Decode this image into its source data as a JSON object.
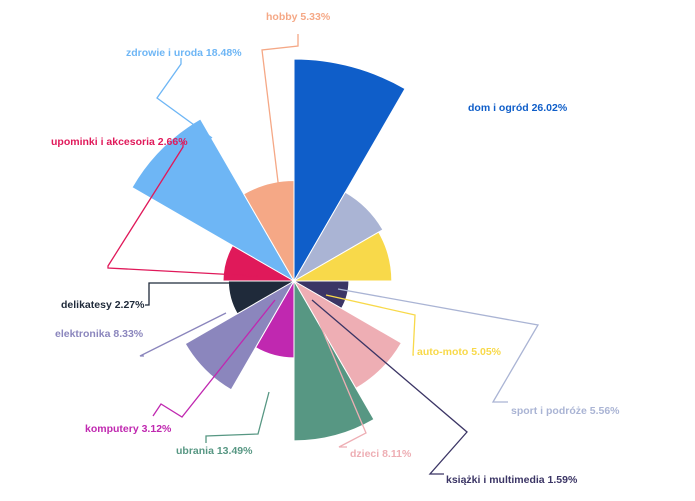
{
  "chart_data": {
    "type": "pie",
    "variant": "polar-area",
    "slices": [
      {
        "label": "dom i ogród",
        "value": 26.02,
        "display": "dom i ogród 26.02%",
        "color": "#0f5ec9"
      },
      {
        "label": "sport i podróże",
        "value": 5.56,
        "display": "sport i podróże 5.56%",
        "color": "#aab4d4"
      },
      {
        "label": "auto-moto",
        "value": 5.05,
        "display": "auto-moto 5.05%",
        "color": "#f8d94a"
      },
      {
        "label": "książki i multimedia",
        "value": 1.59,
        "display": "książki i multimedia 1.59%",
        "color": "#3b3565"
      },
      {
        "label": "dzieci",
        "value": 8.11,
        "display": "dzieci 8.11%",
        "color": "#eeaeb4"
      },
      {
        "label": "ubrania",
        "value": 13.49,
        "display": "ubrania 13.49%",
        "color": "#579783"
      },
      {
        "label": "komputery",
        "value": 3.12,
        "display": "komputery 3.12%",
        "color": "#c028b0"
      },
      {
        "label": "elektronika",
        "value": 8.33,
        "display": "elektronika 8.33%",
        "color": "#8b86bd"
      },
      {
        "label": "delikatesy",
        "value": 2.27,
        "display": "delikatesy 2.27%",
        "color": "#1f2a3a"
      },
      {
        "label": "upominki i akcesoria",
        "value": 2.66,
        "display": "upominki i akcesoria 2.66%",
        "color": "#e0195a"
      },
      {
        "label": "zdrowie i uroda",
        "value": 18.48,
        "display": "zdrowie i uroda 18.48%",
        "color": "#6eb6f5"
      },
      {
        "label": "hobby",
        "value": 5.33,
        "display": "hobby 5.33%",
        "color": "#f5a886"
      }
    ],
    "legend": "none",
    "title": ""
  }
}
